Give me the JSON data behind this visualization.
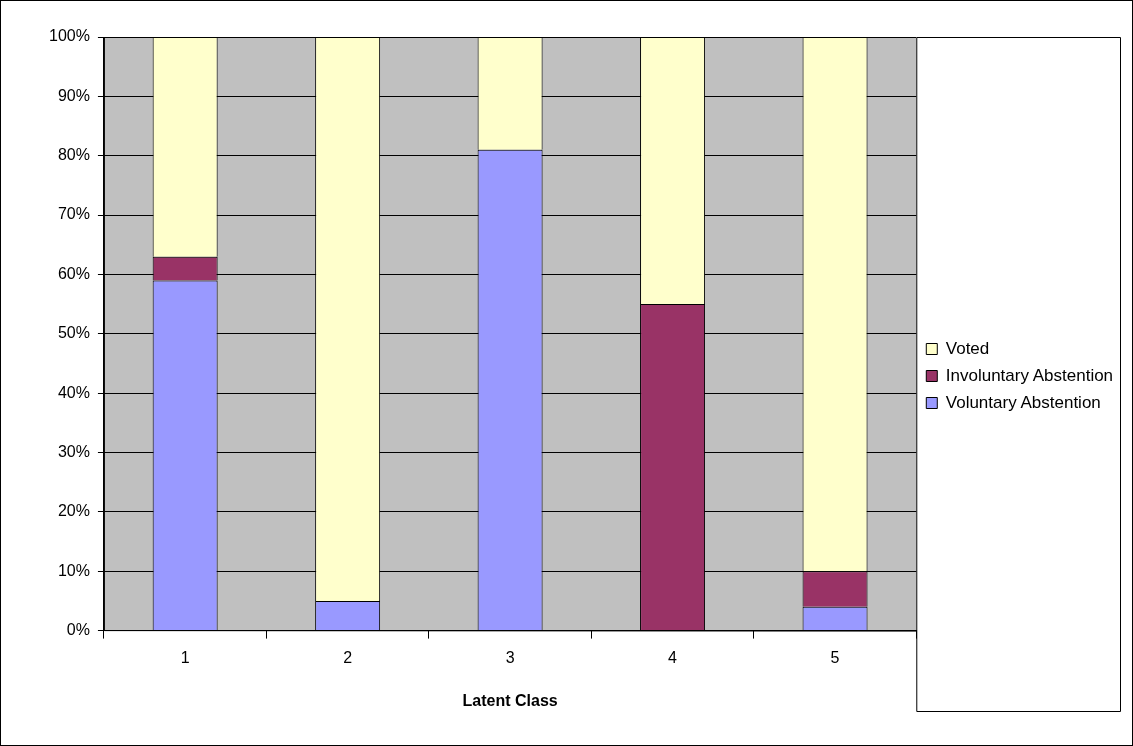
{
  "chart_data": {
    "type": "bar",
    "stacked": true,
    "xlabel": "Latent Class",
    "categories": [
      "1",
      "2",
      "3",
      "4",
      "5"
    ],
    "series": [
      {
        "name": "Voluntary Abstention",
        "color": "#9999ff",
        "values": [
          59,
          5,
          81,
          0,
          4
        ]
      },
      {
        "name": "Involuntary Abstention",
        "color": "#993366",
        "values": [
          4,
          0,
          0,
          55,
          6
        ]
      },
      {
        "name": "Voted",
        "color": "#ffffcc",
        "values": [
          37,
          95,
          19,
          45,
          90
        ]
      }
    ],
    "ylim": [
      0,
      100
    ],
    "yticks": [
      {
        "value": 0,
        "label": "0%"
      },
      {
        "value": 10,
        "label": "10%"
      },
      {
        "value": 20,
        "label": "20%"
      },
      {
        "value": 30,
        "label": "30%"
      },
      {
        "value": 40,
        "label": "40%"
      },
      {
        "value": 50,
        "label": "50%"
      },
      {
        "value": 60,
        "label": "60%"
      },
      {
        "value": 70,
        "label": "70%"
      },
      {
        "value": 80,
        "label": "80%"
      },
      {
        "value": 90,
        "label": "90%"
      },
      {
        "value": 100,
        "label": "100%"
      }
    ],
    "grid": "y",
    "legend": "right"
  }
}
